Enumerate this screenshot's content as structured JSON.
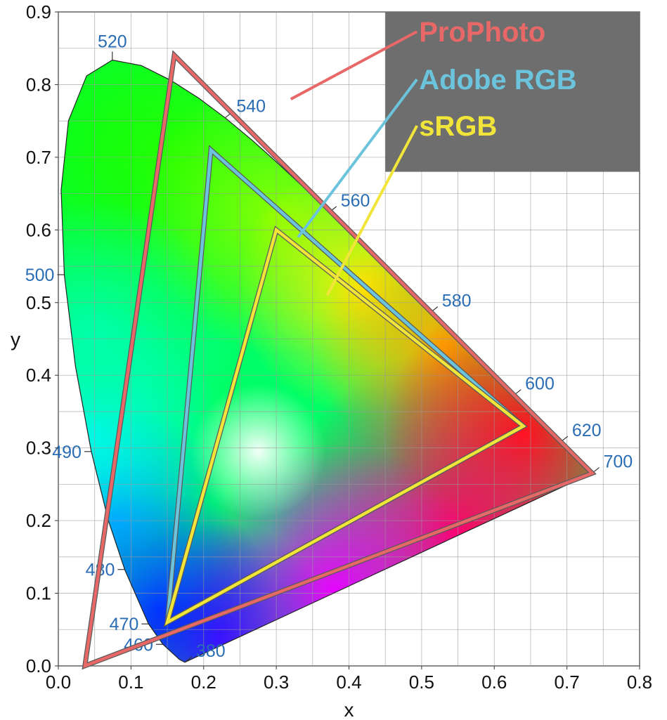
{
  "chart_data": {
    "type": "scatter",
    "xlabel": "x",
    "ylabel": "y",
    "xlim": [
      0.0,
      0.8
    ],
    "ylim": [
      0.0,
      0.9
    ],
    "x_ticks": [
      "0.0",
      "0.1",
      "0.2",
      "0.3",
      "0.4",
      "0.5",
      "0.6",
      "0.7",
      "0.8"
    ],
    "y_ticks": [
      "0.0",
      "0.1",
      "0.2",
      "0.3",
      "0.4",
      "0.5",
      "0.6",
      "0.7",
      "0.8",
      "0.9"
    ],
    "grid": true,
    "grid_minor_step": 0.05,
    "spectral_locus": [
      [
        0.1741,
        0.005
      ],
      [
        0.1666,
        0.0089
      ],
      [
        0.144,
        0.0297
      ],
      [
        0.1241,
        0.0578
      ],
      [
        0.0913,
        0.1327
      ],
      [
        0.0687,
        0.2007
      ],
      [
        0.0454,
        0.295
      ],
      [
        0.0235,
        0.4127
      ],
      [
        0.0082,
        0.5384
      ],
      [
        0.0039,
        0.6548
      ],
      [
        0.0139,
        0.7502
      ],
      [
        0.0389,
        0.812
      ],
      [
        0.0743,
        0.8338
      ],
      [
        0.1142,
        0.8262
      ],
      [
        0.1547,
        0.8059
      ],
      [
        0.1929,
        0.7816
      ],
      [
        0.2296,
        0.7543
      ],
      [
        0.2658,
        0.7243
      ],
      [
        0.3016,
        0.6923
      ],
      [
        0.3373,
        0.6589
      ],
      [
        0.3731,
        0.6245
      ],
      [
        0.4087,
        0.5896
      ],
      [
        0.4441,
        0.5547
      ],
      [
        0.4788,
        0.5202
      ],
      [
        0.5125,
        0.4866
      ],
      [
        0.5448,
        0.4544
      ],
      [
        0.5752,
        0.4242
      ],
      [
        0.6029,
        0.3965
      ],
      [
        0.627,
        0.3725
      ],
      [
        0.6482,
        0.3514
      ],
      [
        0.6658,
        0.334
      ],
      [
        0.6801,
        0.3197
      ],
      [
        0.6915,
        0.3083
      ],
      [
        0.7006,
        0.2993
      ],
      [
        0.7079,
        0.292
      ],
      [
        0.714,
        0.2859
      ],
      [
        0.719,
        0.2809
      ],
      [
        0.723,
        0.277
      ],
      [
        0.726,
        0.274
      ],
      [
        0.7347,
        0.2653
      ]
    ],
    "wavelength_labels": [
      {
        "text": "380",
        "x": 0.1741,
        "y": 0.005,
        "side": "right"
      },
      {
        "text": "460",
        "x": 0.144,
        "y": 0.0297,
        "side": "left"
      },
      {
        "text": "470",
        "x": 0.1241,
        "y": 0.0578,
        "side": "left"
      },
      {
        "text": "480",
        "x": 0.0913,
        "y": 0.1327,
        "side": "left"
      },
      {
        "text": "490",
        "x": 0.0454,
        "y": 0.295,
        "side": "left"
      },
      {
        "text": "500",
        "x": 0.0082,
        "y": 0.5384,
        "side": "left"
      },
      {
        "text": "520",
        "x": 0.0743,
        "y": 0.8338,
        "side": "top"
      },
      {
        "text": "540",
        "x": 0.2296,
        "y": 0.7543,
        "side": "right"
      },
      {
        "text": "560",
        "x": 0.3731,
        "y": 0.6245,
        "side": "right"
      },
      {
        "text": "580",
        "x": 0.5125,
        "y": 0.4866,
        "side": "right"
      },
      {
        "text": "600",
        "x": 0.627,
        "y": 0.3725,
        "side": "right"
      },
      {
        "text": "620",
        "x": 0.6915,
        "y": 0.3083,
        "side": "right"
      },
      {
        "text": "700",
        "x": 0.7347,
        "y": 0.2653,
        "side": "right"
      }
    ],
    "series": [
      {
        "name": "ProPhoto",
        "color": "#e86868",
        "values": [
          [
            0.7347,
            0.2653
          ],
          [
            0.1596,
            0.8404
          ],
          [
            0.0366,
            0.0001
          ]
        ]
      },
      {
        "name": "Adobe RGB",
        "color": "#6cc4dc",
        "values": [
          [
            0.64,
            0.33
          ],
          [
            0.21,
            0.71
          ],
          [
            0.15,
            0.06
          ]
        ]
      },
      {
        "name": "sRGB",
        "color": "#f2e53a",
        "values": [
          [
            0.64,
            0.33
          ],
          [
            0.3,
            0.6
          ],
          [
            0.15,
            0.06
          ]
        ]
      }
    ],
    "legend": {
      "placement": "top-right",
      "background": "#6e6e6e",
      "entries": [
        "ProPhoto",
        "Adobe RGB",
        "sRGB"
      ],
      "leader_targets": [
        [
          0.32,
          0.78
        ],
        [
          0.33,
          0.59
        ],
        [
          0.37,
          0.51
        ]
      ]
    }
  }
}
